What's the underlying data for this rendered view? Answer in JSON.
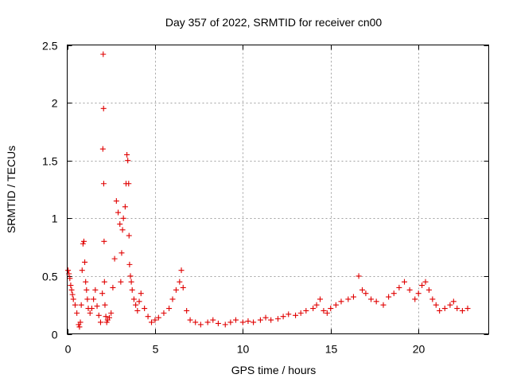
{
  "chart_data": {
    "type": "scatter",
    "title": "Day 357 of 2022, SRMTID for receiver cn00",
    "xlabel": "GPS time / hours",
    "ylabel": "SRMTID / TECUs",
    "xlim": [
      0,
      24
    ],
    "ylim": [
      0,
      2.5
    ],
    "x_ticks": [
      0,
      5,
      10,
      15,
      20
    ],
    "x_tick_labels": [
      "0",
      "5",
      "10",
      "15",
      "20"
    ],
    "y_ticks": [
      0,
      0.5,
      1,
      1.5,
      2,
      2.5
    ],
    "y_tick_labels": [
      "0",
      "0.5",
      "1",
      "1.5",
      "2",
      "2.5"
    ],
    "grid": true,
    "marker": "plus",
    "color": "#e00000",
    "series": [
      {
        "name": "cn00",
        "x": [
          0.05,
          0.1,
          0.15,
          0.2,
          0.25,
          0.3,
          0.35,
          0.45,
          0.55,
          0.65,
          0.7,
          0.75,
          0.8,
          0.85,
          0.9,
          0.95,
          1.0,
          1.05,
          1.1,
          1.15,
          1.2,
          1.3,
          1.4,
          1.5,
          1.6,
          1.7,
          1.8,
          1.9,
          2.0,
          2.03,
          2.05,
          2.07,
          2.08,
          2.1,
          2.12,
          2.15,
          2.2,
          2.25,
          2.3,
          2.4,
          2.5,
          2.6,
          2.7,
          2.8,
          2.9,
          3.0,
          3.05,
          3.1,
          3.15,
          3.2,
          3.3,
          3.35,
          3.4,
          3.45,
          3.5,
          3.52,
          3.55,
          3.6,
          3.65,
          3.7,
          3.8,
          3.9,
          4.0,
          4.1,
          4.2,
          4.4,
          4.6,
          4.8,
          5.0,
          5.2,
          5.5,
          5.8,
          6.0,
          6.2,
          6.4,
          6.5,
          6.6,
          6.8,
          7.0,
          7.3,
          7.6,
          8.0,
          8.3,
          8.6,
          9.0,
          9.3,
          9.6,
          10.0,
          10.3,
          10.6,
          11.0,
          11.3,
          11.6,
          12.0,
          12.3,
          12.6,
          13.0,
          13.3,
          13.6,
          14.0,
          14.2,
          14.4,
          14.6,
          14.8,
          15.0,
          15.3,
          15.6,
          16.0,
          16.3,
          16.6,
          16.8,
          17.0,
          17.3,
          17.6,
          18.0,
          18.3,
          18.6,
          18.9,
          19.2,
          19.5,
          19.8,
          20.0,
          20.2,
          20.4,
          20.6,
          20.8,
          21.0,
          21.2,
          21.5,
          21.8,
          22.0,
          22.2,
          22.5,
          22.8
        ],
        "y": [
          0.55,
          0.52,
          0.48,
          0.42,
          0.38,
          0.34,
          0.3,
          0.25,
          0.18,
          0.08,
          0.06,
          0.1,
          0.25,
          0.55,
          0.78,
          0.8,
          0.62,
          0.45,
          0.38,
          0.3,
          0.22,
          0.18,
          0.22,
          0.3,
          0.38,
          0.24,
          0.16,
          0.1,
          0.35,
          1.6,
          2.42,
          1.95,
          1.3,
          0.8,
          0.45,
          0.25,
          0.15,
          0.1,
          0.12,
          0.14,
          0.18,
          0.4,
          0.65,
          1.15,
          1.05,
          0.95,
          0.45,
          0.7,
          0.9,
          1.0,
          1.1,
          1.3,
          1.55,
          1.5,
          1.3,
          0.85,
          0.6,
          0.5,
          0.45,
          0.38,
          0.3,
          0.25,
          0.2,
          0.28,
          0.35,
          0.22,
          0.15,
          0.1,
          0.12,
          0.14,
          0.18,
          0.22,
          0.3,
          0.38,
          0.45,
          0.55,
          0.4,
          0.2,
          0.12,
          0.1,
          0.08,
          0.1,
          0.12,
          0.09,
          0.08,
          0.1,
          0.12,
          0.1,
          0.11,
          0.1,
          0.12,
          0.14,
          0.12,
          0.13,
          0.15,
          0.17,
          0.16,
          0.18,
          0.2,
          0.22,
          0.25,
          0.3,
          0.2,
          0.18,
          0.22,
          0.25,
          0.28,
          0.3,
          0.32,
          0.5,
          0.38,
          0.35,
          0.3,
          0.28,
          0.25,
          0.32,
          0.35,
          0.4,
          0.45,
          0.38,
          0.3,
          0.35,
          0.42,
          0.45,
          0.38,
          0.3,
          0.25,
          0.2,
          0.22,
          0.25,
          0.28,
          0.22,
          0.2,
          0.22
        ]
      }
    ]
  }
}
